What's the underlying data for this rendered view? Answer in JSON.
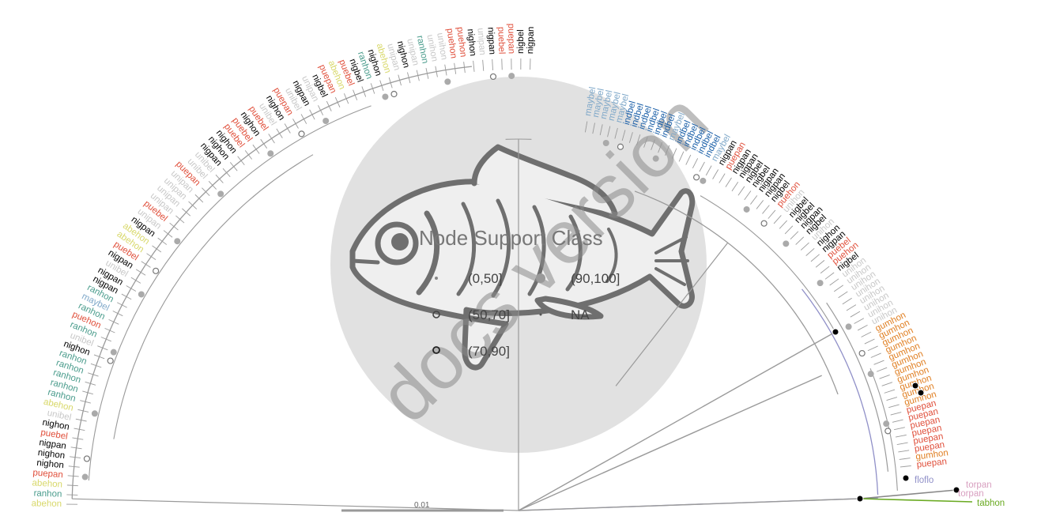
{
  "colors": {
    "maybel": "#7fa8c9",
    "indbel": "#1a5fa8",
    "nigpan": "#000000",
    "nigbel": "#000000",
    "nighon": "#000000",
    "puepan": "#e0503c",
    "puebel": "#e0503c",
    "puehon": "#e0503c",
    "unibel": "#c8c8c8",
    "unipan": "#c8c8c8",
    "unihon": "#c8c8c8",
    "abehon": "#d8d86a",
    "ranhon": "#4a9c8c",
    "gumhon": "#e07f22",
    "floflo": "#9090c8",
    "torpan": "#d8a0c0",
    "tabhon": "#6aaa22",
    "branch": "#9a9a9a",
    "fish": "#707070",
    "circle": "#dcdcdc"
  },
  "tips_left_arc": [
    "abehon",
    "ranhon",
    "abehon",
    "puepan",
    "nighon",
    "nighon",
    "nigpan",
    "puebel",
    "nighon",
    "unibel",
    "abehon",
    "ranhon",
    "ranhon",
    "ranhon",
    "ranhon",
    "ranhon",
    "nighon",
    "unibel",
    "ranhon",
    "puehon",
    "ranhon",
    "maybel",
    "ranhon",
    "nigpan",
    "nigpan",
    "unibel",
    "nigpan",
    "puebel",
    "abehon",
    "abehon",
    "nigpan",
    "unipan",
    "puebel",
    "unipan",
    "unipan",
    "unipan",
    "unipan",
    "puepan",
    "unibel",
    "unibel",
    "nigpan",
    "nighon",
    "nighon",
    "puebel",
    "puebel",
    "nighon",
    "puebel",
    "unibel",
    "nighon",
    "puepan",
    "unibel",
    "nigpan",
    "unipan",
    "nigbel",
    "puepan",
    "abehon",
    "puebel",
    "nigbel",
    "ranhon",
    "nighon",
    "abehon",
    "unipan",
    "nighon",
    "unipan",
    "ranhon",
    "unihon",
    "unihon",
    "puehon",
    "puehon",
    "nighon",
    "unipan",
    "nigpan",
    "puebel",
    "puepan",
    "nigbel",
    "nigpan"
  ],
  "tips_right_arc": [
    "maybel",
    "maybel",
    "maybel",
    "maybel",
    "maybel",
    "indbel",
    "indbel",
    "indbel",
    "indbel",
    "indbel",
    "indbel",
    "maybel",
    "indbel",
    "indbel",
    "indbel",
    "indbel",
    "indbel",
    "maybel",
    "nigpan",
    "puepan",
    "nigpan",
    "nigpan",
    "nigbel",
    "nigbel",
    "nigpan",
    "nigpan",
    "nigbel",
    "puehon",
    "unihon",
    "nigbel",
    "nigbel",
    "nigpan",
    "nigbel",
    "unihon",
    "nighon",
    "nigpan",
    "puebel",
    "puehon",
    "nigbel",
    "unihon",
    "unihon",
    "unihon",
    "unihon",
    "unihon",
    "unihon",
    "unihon",
    "unihon",
    "gumhon",
    "gumhon",
    "gumhon",
    "gumhon",
    "gumhon",
    "gumhon",
    "gumhon",
    "gumhon",
    "gumhon",
    "gumhon",
    "gumhon",
    "puepan",
    "puepan",
    "puepan",
    "puepan",
    "puepan",
    "puepan",
    "gumhon",
    "puepan"
  ],
  "tips_outgroup": [
    {
      "label": "floflo",
      "group": "floflo"
    },
    {
      "label": "torpan",
      "group": "torpan"
    },
    {
      "label": "torpan",
      "group": "torpan"
    },
    {
      "label": "tabhon",
      "group": "tabhon"
    }
  ],
  "legend": {
    "title": "Node Support Class",
    "items": [
      {
        "label": "(0,50]",
        "symbol": "small-dot"
      },
      {
        "label": "(90,100]",
        "symbol": "large-gray-dot"
      },
      {
        "label": "(50,70]",
        "symbol": "open-circle"
      },
      {
        "label": "NA",
        "symbol": "tiny-dot"
      },
      {
        "label": "(70,90]",
        "symbol": "open-circle-dark"
      }
    ]
  },
  "watermark": "docs version",
  "scale_bar": {
    "label": "0.01"
  }
}
